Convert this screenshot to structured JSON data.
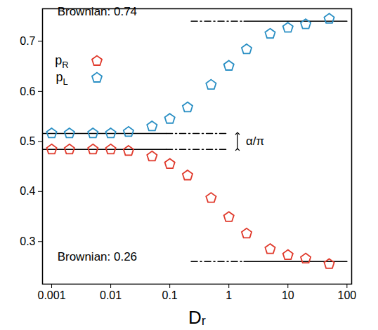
{
  "chart_data": {
    "type": "scatter",
    "x_label": "Dᵣ",
    "log": "x",
    "grid": false,
    "legend": "top-left",
    "xlim": [
      0.0007,
      120
    ],
    "xticks": [
      0.001,
      0.01,
      0.1,
      1,
      10,
      100
    ],
    "ylim": [
      0.215,
      0.765
    ],
    "yticks": [
      0.3,
      0.4,
      0.5,
      0.6,
      0.7
    ],
    "x": [
      0.001,
      0.002,
      0.005,
      0.01,
      0.02,
      0.05,
      0.1,
      0.2,
      0.5,
      1,
      2,
      5,
      10,
      20,
      50
    ],
    "series": [
      {
        "name": "pR",
        "color": "#e03a2c",
        "marker": "pentagon",
        "values": [
          0.484,
          0.484,
          0.484,
          0.484,
          0.481,
          0.47,
          0.455,
          0.432,
          0.387,
          0.349,
          0.316,
          0.285,
          0.273,
          0.266,
          0.255
        ]
      },
      {
        "name": "pL",
        "color": "#2a8fc4",
        "marker": "pentagon",
        "values": [
          0.516,
          0.516,
          0.516,
          0.516,
          0.519,
          0.53,
          0.545,
          0.568,
          0.613,
          0.651,
          0.684,
          0.715,
          0.727,
          0.734,
          0.745
        ]
      }
    ],
    "reference_lines": [
      {
        "y": 0.516,
        "solid": [
          0.0007,
          0.087
        ],
        "dashdot": [
          0.087,
          0.9
        ]
      },
      {
        "y": 0.484,
        "solid": [
          0.0007,
          0.087
        ],
        "dashdot": [
          0.087,
          0.9
        ]
      },
      {
        "y": 0.74,
        "dashdot": [
          0.23,
          1.8
        ],
        "solid": [
          1.8,
          100
        ]
      },
      {
        "y": 0.26,
        "dashdot": [
          0.23,
          1.8
        ],
        "solid": [
          1.8,
          100
        ]
      }
    ],
    "annotations": [
      {
        "text": "Brownian: 0.74",
        "x": 0.00125,
        "y": 0.745
      },
      {
        "text": "Brownian: 0.26",
        "x": 0.00125,
        "y": 0.255
      }
    ],
    "range_marker": {
      "text": "α/π",
      "x": 1.4,
      "y1": 0.484,
      "y2": 0.516
    }
  }
}
